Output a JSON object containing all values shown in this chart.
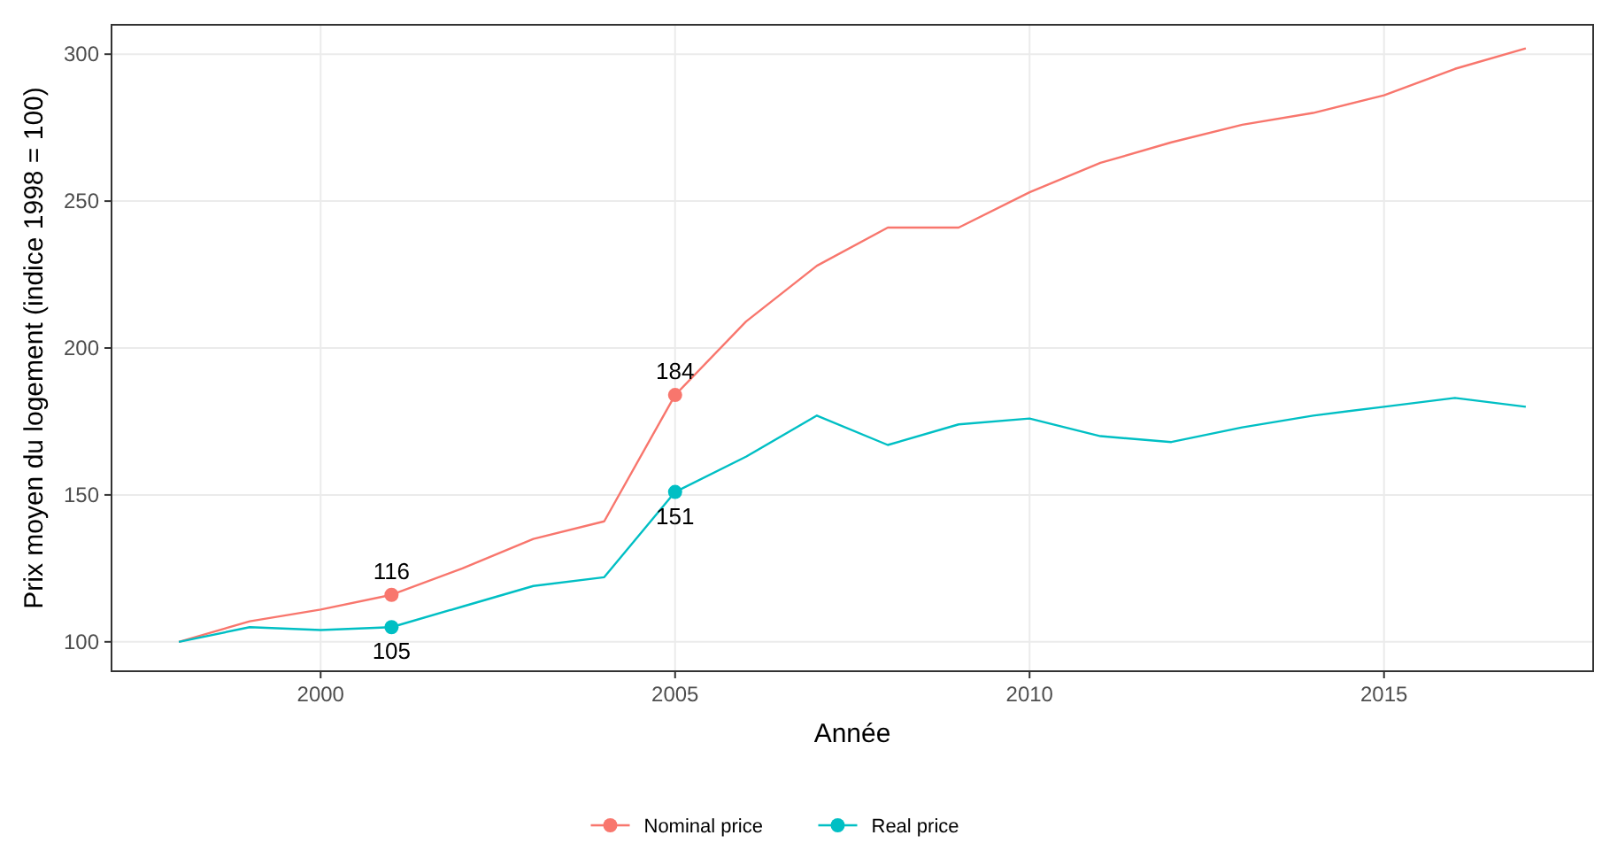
{
  "chart_data": {
    "type": "line",
    "xlabel": "Année",
    "ylabel": "Prix moyen du logement (indice 1998 = 100)",
    "x": [
      1998,
      1999,
      2000,
      2001,
      2002,
      2003,
      2004,
      2005,
      2006,
      2007,
      2008,
      2009,
      2010,
      2011,
      2012,
      2013,
      2014,
      2015,
      2016,
      2017
    ],
    "series": [
      {
        "name": "Nominal price",
        "color": "#f8766d",
        "values": [
          100,
          107,
          111,
          116,
          125,
          135,
          141,
          184,
          209,
          228,
          241,
          241,
          253,
          263,
          270,
          276,
          280,
          286,
          295,
          302
        ]
      },
      {
        "name": "Real price",
        "color": "#00bfc4",
        "values": [
          100,
          105,
          104,
          105,
          112,
          119,
          122,
          151,
          163,
          177,
          167,
          174,
          176,
          170,
          168,
          173,
          177,
          180,
          183,
          180
        ]
      },
      {
        "type": "scatter",
        "marker": "circle",
        "color": "#f8766d",
        "values": [
          null,
          null,
          null,
          116,
          null,
          null,
          null,
          184,
          null,
          null,
          null,
          null,
          null,
          null,
          null,
          null,
          null,
          null,
          null,
          null
        ],
        "value_labels": [
          null,
          null,
          null,
          "116",
          null,
          null,
          null,
          "184",
          null,
          null,
          null,
          null,
          null,
          null,
          null,
          null,
          null,
          null,
          null,
          null
        ]
      },
      {
        "type": "scatter",
        "marker": "circle",
        "color": "#00bfc4",
        "values": [
          null,
          null,
          null,
          105,
          null,
          null,
          null,
          151,
          null,
          null,
          null,
          null,
          null,
          null,
          null,
          null,
          null,
          null,
          null,
          null
        ],
        "value_labels": [
          null,
          null,
          null,
          "105",
          null,
          null,
          null,
          "151",
          null,
          null,
          null,
          null,
          null,
          null,
          null,
          null,
          null,
          null,
          null,
          null
        ]
      }
    ],
    "xlim": [
      1997.05,
      2017.95
    ],
    "ylim": [
      90,
      310
    ],
    "xticks": [
      2000,
      2005,
      2010,
      2015
    ],
    "yticks": [
      100,
      150,
      200,
      250,
      300
    ],
    "grid": true,
    "legend": "bottom"
  }
}
